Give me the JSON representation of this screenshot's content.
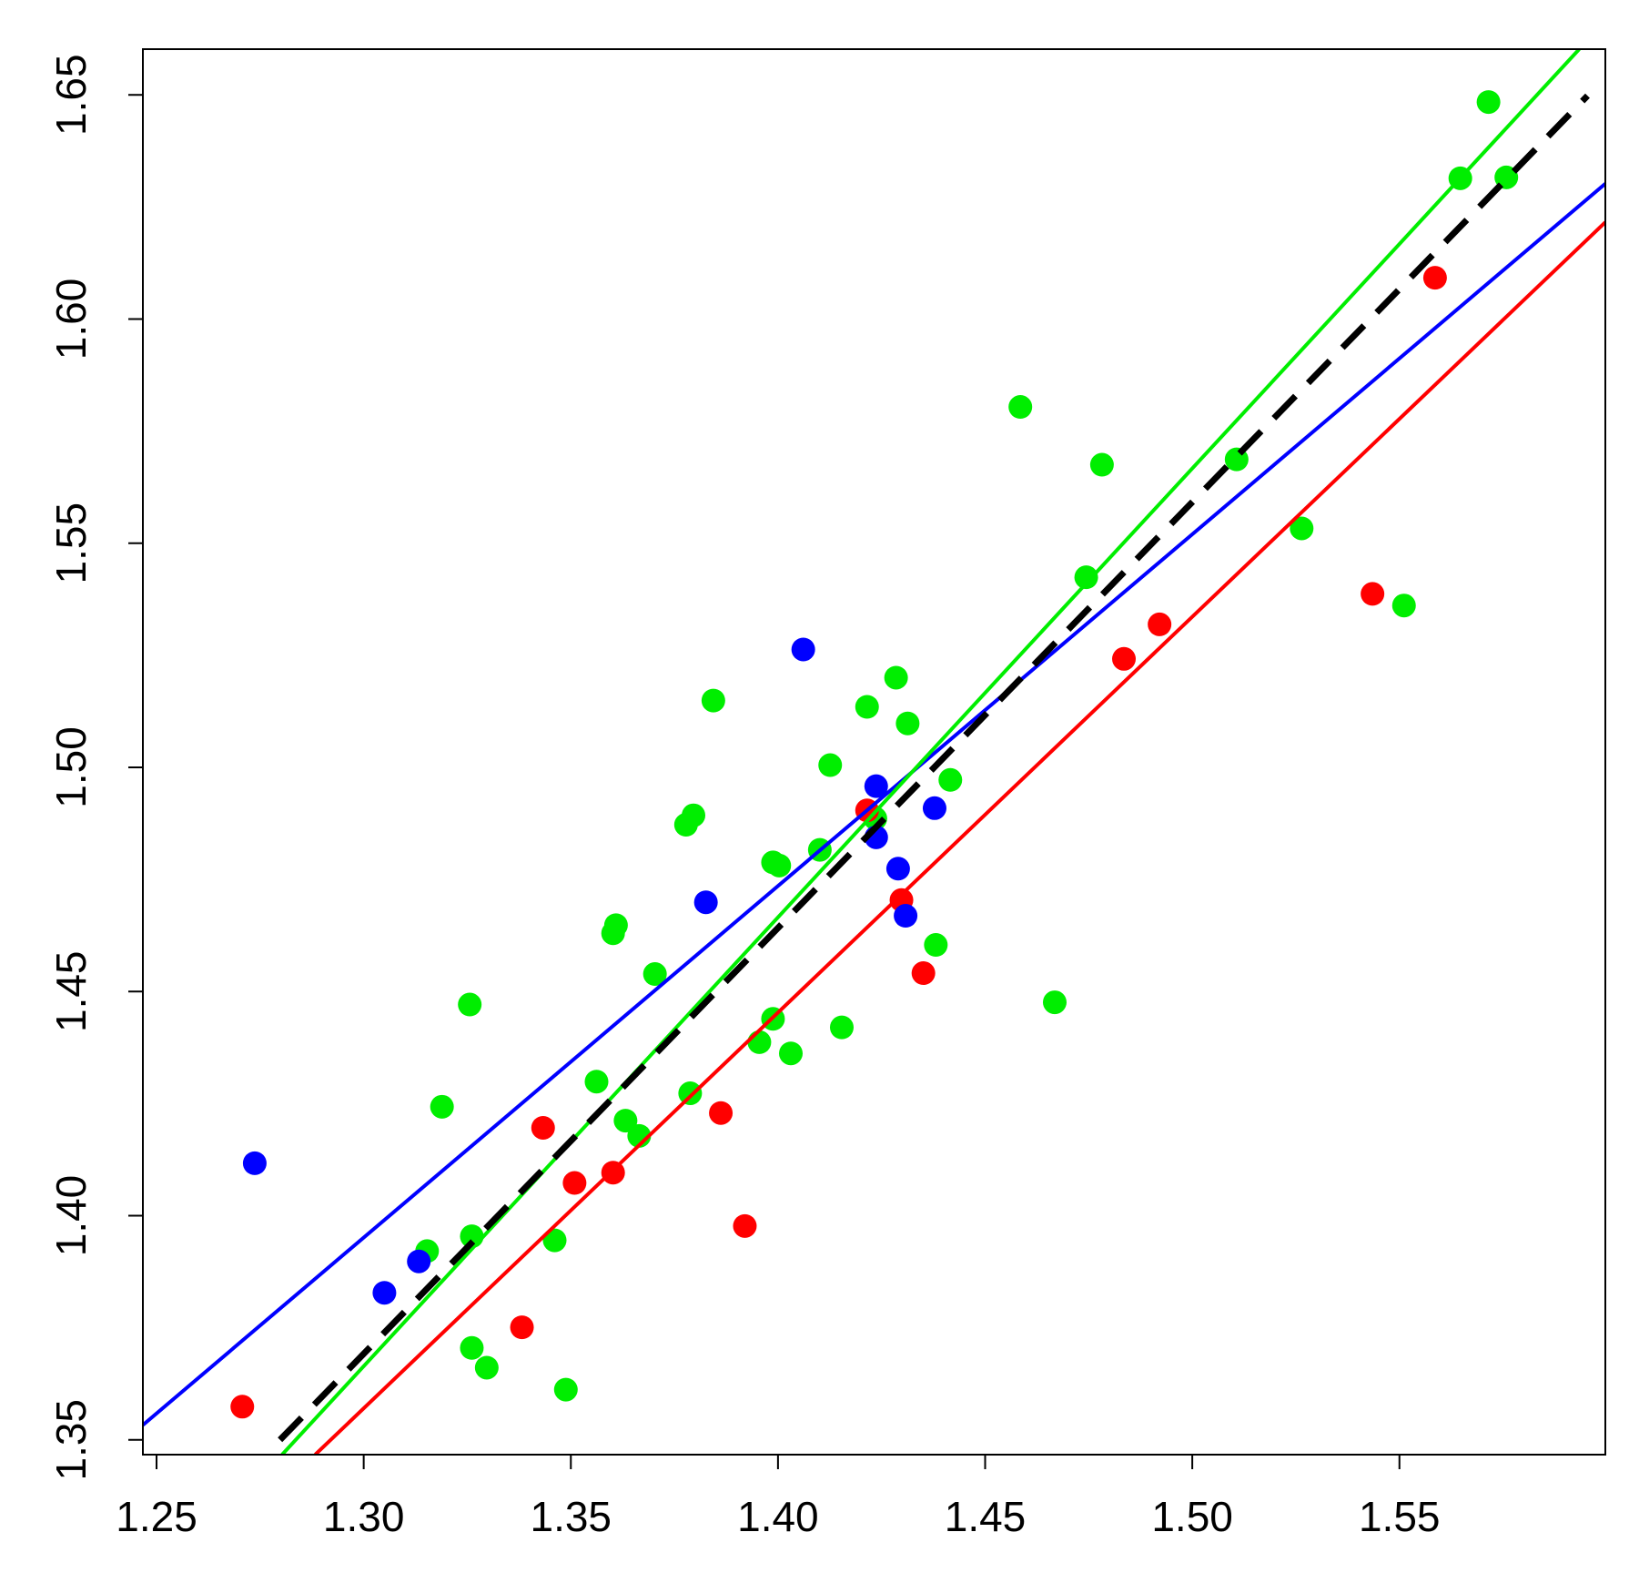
{
  "chart_data": {
    "type": "scatter",
    "xlim": [
      1.2467,
      1.5997
    ],
    "ylim": [
      1.3467,
      1.6602
    ],
    "xticks": [
      1.25,
      {
        "value": 1.3,
        "label": "1.30"
      },
      1.35,
      {
        "value": 1.4,
        "label": "1.40"
      },
      1.45,
      {
        "value": 1.5,
        "label": "1.50"
      },
      1.55
    ],
    "yticks": [
      1.35,
      {
        "value": 1.4,
        "label": "1.40"
      },
      1.45,
      {
        "value": 1.5,
        "label": "1.50"
      },
      1.55,
      {
        "value": 1.6,
        "label": "1.60"
      },
      1.65
    ],
    "series": [
      {
        "color": "#00ee00",
        "x": [
          1.3153,
          1.3189,
          1.3256,
          1.3261,
          1.3261,
          1.3297,
          1.3461,
          1.3488,
          1.3562,
          1.3602,
          1.3609,
          1.3632,
          1.3665,
          1.3703,
          1.3778,
          1.3796,
          1.3788,
          1.3844,
          1.3955,
          1.3988,
          1.3988,
          1.4003,
          1.4031,
          1.4101,
          1.4126,
          1.4154,
          1.4215,
          1.4235,
          1.4285,
          1.4313,
          1.4381,
          1.4416,
          1.4585,
          1.4668,
          1.4744,
          1.4782,
          1.5107,
          1.5264,
          1.5511,
          1.5647,
          1.5715,
          1.5758
        ],
        "values": [
          1.3921,
          1.4243,
          1.4471,
          1.3954,
          1.3705,
          1.3661,
          1.3945,
          1.3612,
          1.4299,
          1.463,
          1.4648,
          1.4212,
          1.4178,
          1.4539,
          1.4872,
          1.4893,
          1.4273,
          1.5149,
          1.4387,
          1.4439,
          1.4788,
          1.4781,
          1.4362,
          1.4816,
          1.5005,
          1.442,
          1.5135,
          1.4886,
          1.52,
          1.5098,
          1.4604,
          1.4972,
          1.5804,
          1.4476,
          1.5424,
          1.5675,
          1.5687,
          1.5533,
          1.5361,
          1.6314,
          1.6484,
          1.6316
        ]
      },
      {
        "color": "#ff0000",
        "x": [
          1.2707,
          1.3382,
          1.3433,
          1.3509,
          1.3602,
          1.3862,
          1.392,
          1.4215,
          1.4298,
          1.4351,
          1.4835,
          1.4921,
          1.5435,
          1.5586
        ],
        "values": [
          1.3574,
          1.3751,
          1.4196,
          1.4073,
          1.4096,
          1.4229,
          1.3977,
          1.4904,
          1.4704,
          1.4541,
          1.5242,
          1.5319,
          1.5387,
          1.6092
        ]
      },
      {
        "color": "#0000ff",
        "x": [
          1.2737,
          1.305,
          1.3133,
          1.3826,
          1.4061,
          1.4237,
          1.4237,
          1.429,
          1.4308,
          1.4378
        ],
        "values": [
          1.4117,
          1.3828,
          1.3898,
          1.4699,
          1.5263,
          1.4958,
          1.4844,
          1.4774,
          1.4669,
          1.4909
        ]
      }
    ],
    "lines": [
      {
        "color": "#0000ff",
        "dash": false,
        "x": [
          1.2467,
          1.5997
        ],
        "values": [
          1.3533,
          1.6302
        ]
      },
      {
        "color": "#ff0000",
        "dash": false,
        "x": [
          1.2883,
          1.5997
        ],
        "values": [
          1.3467,
          1.6216
        ]
      },
      {
        "color": "#00ee00",
        "dash": false,
        "x": [
          1.2803,
          1.5934
        ],
        "values": [
          1.3467,
          1.6602
        ]
      },
      {
        "color": "#000000",
        "dash": true,
        "x": [
          1.2798,
          1.5954
        ],
        "values": [
          1.35,
          1.6498
        ]
      }
    ]
  }
}
